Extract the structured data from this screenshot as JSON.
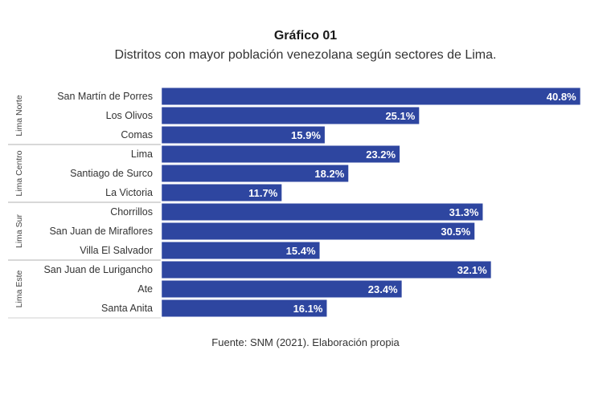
{
  "chart_data": {
    "type": "bar",
    "orientation": "horizontal",
    "title": "Gráfico 01",
    "subtitle": "Distritos con mayor población venezolana según sectores de Lima.",
    "source": "Fuente: SNM (2021). Elaboración propia",
    "bar_color": "#2e46a0",
    "groups": [
      {
        "name": "Lima Norte",
        "categories": [
          "San Martín de Porres",
          "Los Olivos",
          "Comas"
        ],
        "values": [
          40.8,
          25.1,
          15.9
        ],
        "labels": [
          "40.8%",
          "25.1%",
          "15.9%"
        ]
      },
      {
        "name": "Lima Centro",
        "categories": [
          "Lima",
          "Santiago de Surco",
          "La Victoria"
        ],
        "values": [
          23.2,
          18.2,
          11.7
        ],
        "labels": [
          "23.2%",
          "18.2%",
          "11.7%"
        ]
      },
      {
        "name": "Lima Sur",
        "categories": [
          "Chorrillos",
          "San Juan de Miraflores",
          "Villa El Salvador"
        ],
        "values": [
          31.3,
          30.5,
          15.4
        ],
        "labels": [
          "31.3%",
          "30.5%",
          "15.4%"
        ]
      },
      {
        "name": "Lima Este",
        "categories": [
          "San Juan de Lurigancho",
          "Ate",
          "Santa Anita"
        ],
        "values": [
          32.1,
          23.4,
          16.1
        ],
        "labels": [
          "32.1%",
          "23.4%",
          "16.1%"
        ]
      }
    ],
    "xlim": [
      0,
      42
    ]
  }
}
